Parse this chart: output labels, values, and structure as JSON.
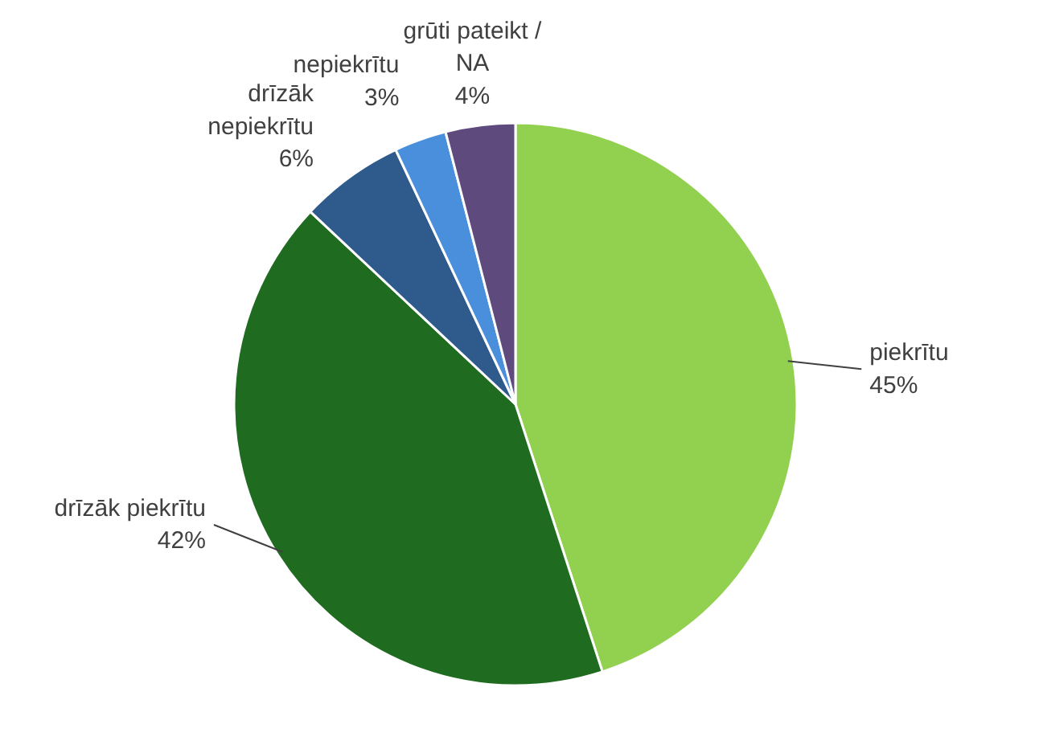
{
  "chart_data": {
    "type": "pie",
    "categories": [
      "piekrītu",
      "drīzāk piekrītu",
      "drīzāk nepiekrītu",
      "nepiekrītu",
      "grūti pateikt / NA"
    ],
    "values": [
      45,
      42,
      6,
      3,
      4
    ],
    "colors": [
      "#92d050",
      "#1f6b1f",
      "#2f5b8c",
      "#4a8fdb",
      "#5e4a7c"
    ],
    "value_labels": [
      "45%",
      "42%",
      "6%",
      "3%",
      "4%"
    ]
  }
}
